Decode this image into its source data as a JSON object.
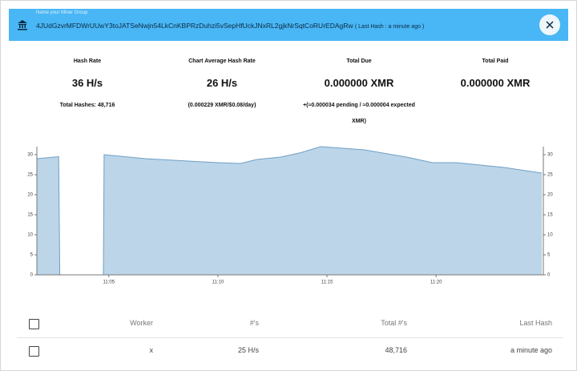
{
  "header": {
    "label": "Name your Miner Group",
    "address": "4JUdGzvrMFDWrUUwY3toJATSeNwjn54LkCnKBPRzDuhzi5vSepHfUckJNxRL2gjkNrSqtCoRUrEDAgRw",
    "last_hash": "( Last Hash : a minute ago )"
  },
  "stats": [
    {
      "label": "Hash Rate",
      "value": "36 H/s",
      "sub": "Total Hashes: 48,716"
    },
    {
      "label": "Chart Average Hash Rate",
      "value": "26 H/s",
      "sub": "(0.000229 XMR/$0.08/day)"
    },
    {
      "label": "Total Due",
      "value": "0.000000 XMR",
      "sub": "+(≈0.000034 pending / ≈0.000004 expected XMR)"
    },
    {
      "label": "Total Paid",
      "value": "0.000000 XMR"
    }
  ],
  "chart": {
    "type": "area",
    "color": "#bcd5e8",
    "x": [
      "11:01:42",
      "11:02:42",
      "11:02:45",
      "11:04:45",
      "11:04:47",
      "11:06:40",
      "11:10:00",
      "11:11:02",
      "11:11:47",
      "11:12:53",
      "11:13:48",
      "11:14:43",
      "11:16:43",
      "11:18:44",
      "11:19:50",
      "11:20:56",
      "11:23:08",
      "11:24:51"
    ],
    "values": [
      29,
      29.5,
      0,
      0,
      30,
      29,
      28,
      27.8,
      28.8,
      29.4,
      30.5,
      32,
      31.2,
      29.3,
      28,
      28,
      26.8,
      25.4
    ],
    "xlim": [
      "11:01:42",
      "11:24:55"
    ],
    "xticks": [
      "11:05",
      "11:10",
      "11:15",
      "11:20"
    ],
    "ylim": [
      0,
      32
    ],
    "yticks": [
      0,
      5,
      10,
      15,
      20,
      25,
      30
    ]
  },
  "table": {
    "columns": [
      "Worker",
      "#'s",
      "Total #'s",
      "Last Hash"
    ],
    "rows": [
      [
        "x",
        "25 H/s",
        "48,716",
        "a minute ago"
      ]
    ]
  }
}
